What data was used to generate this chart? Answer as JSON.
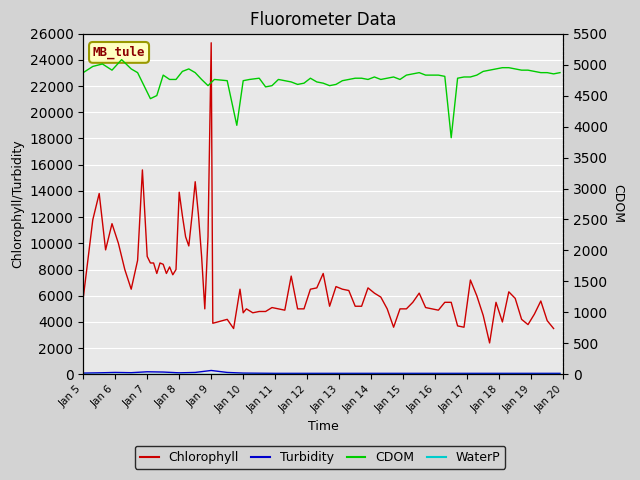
{
  "title": "Fluorometer Data",
  "xlabel": "Time",
  "ylabel_left": "Chlorophyll/Turbidity",
  "ylabel_right": "CDOM",
  "annotation": "MB_tule",
  "ylim_left": [
    0,
    26000
  ],
  "ylim_right": [
    0,
    5500
  ],
  "background_color": "#d3d3d3",
  "plot_bg_color": "#e8e8e8",
  "legend_labels": [
    "Chlorophyll",
    "Turbidity",
    "CDOM",
    "WaterP"
  ],
  "legend_colors": [
    "#cc0000",
    "#0000cc",
    "#00cc00",
    "#00cccc"
  ],
  "chlorophyll": {
    "x": [
      5.0,
      5.3,
      5.5,
      5.7,
      5.9,
      6.1,
      6.3,
      6.5,
      6.7,
      6.85,
      7.0,
      7.1,
      7.2,
      7.3,
      7.4,
      7.5,
      7.6,
      7.7,
      7.8,
      7.9,
      8.0,
      8.1,
      8.2,
      8.3,
      8.4,
      8.5,
      8.6,
      8.7,
      8.8,
      8.9,
      9.0,
      9.05,
      9.5,
      9.7,
      9.9,
      10.0,
      10.1,
      10.3,
      10.5,
      10.7,
      10.9,
      11.1,
      11.3,
      11.5,
      11.7,
      11.9,
      12.1,
      12.3,
      12.5,
      12.7,
      12.9,
      13.1,
      13.3,
      13.5,
      13.7,
      13.9,
      14.1,
      14.3,
      14.5,
      14.7,
      14.9,
      15.1,
      15.3,
      15.5,
      15.7,
      15.9,
      16.1,
      16.3,
      16.5,
      16.7,
      16.9,
      17.1,
      17.3,
      17.5,
      17.7,
      17.9,
      18.1,
      18.3,
      18.5,
      18.7,
      18.9,
      19.1,
      19.3,
      19.5,
      19.7
    ],
    "y": [
      5800,
      11800,
      13800,
      9500,
      11500,
      10000,
      8000,
      6500,
      8700,
      15600,
      9000,
      8500,
      8500,
      7700,
      8500,
      8400,
      7700,
      8200,
      7600,
      8000,
      13900,
      12100,
      10500,
      9800,
      12100,
      14700,
      12200,
      9000,
      5000,
      10500,
      25300,
      3900,
      4200,
      3500,
      6500,
      4700,
      5000,
      4700,
      4800,
      4800,
      5100,
      5000,
      4900,
      7500,
      5000,
      5000,
      6500,
      6600,
      7700,
      5200,
      6700,
      6500,
      6400,
      5200,
      5200,
      6600,
      6200,
      5900,
      5000,
      3600,
      5000,
      5000,
      5500,
      6200,
      5100,
      5000,
      4900,
      5500,
      5500,
      3700,
      3600,
      7200,
      6000,
      4500,
      2400,
      5500,
      4000,
      6300,
      5800,
      4200,
      3800,
      4600,
      5600,
      4100,
      3500
    ]
  },
  "turbidity": {
    "x": [
      5.0,
      5.5,
      6.0,
      6.5,
      7.0,
      7.5,
      8.0,
      8.5,
      9.0,
      9.5,
      10.0,
      11.0,
      12.0,
      13.0,
      14.0,
      15.0,
      16.0,
      17.0,
      18.0,
      19.0,
      19.9
    ],
    "y": [
      100,
      120,
      150,
      130,
      200,
      180,
      120,
      150,
      300,
      150,
      100,
      80,
      80,
      80,
      80,
      80,
      80,
      80,
      80,
      80,
      80
    ]
  },
  "cdom": {
    "x": [
      5.0,
      5.3,
      5.6,
      5.9,
      6.2,
      6.5,
      6.7,
      6.9,
      7.1,
      7.3,
      7.5,
      7.7,
      7.9,
      8.1,
      8.3,
      8.5,
      8.7,
      8.9,
      9.1,
      9.5,
      9.8,
      10.0,
      10.2,
      10.5,
      10.7,
      10.9,
      11.1,
      11.3,
      11.5,
      11.7,
      11.9,
      12.1,
      12.3,
      12.5,
      12.7,
      12.9,
      13.1,
      13.3,
      13.5,
      13.7,
      13.9,
      14.1,
      14.3,
      14.5,
      14.7,
      14.9,
      15.1,
      15.3,
      15.5,
      15.7,
      15.9,
      16.1,
      16.3,
      16.5,
      16.7,
      16.9,
      17.1,
      17.3,
      17.5,
      17.7,
      17.9,
      18.1,
      18.3,
      18.5,
      18.7,
      18.9,
      19.1,
      19.3,
      19.5,
      19.7,
      19.9
    ],
    "y": [
      4870,
      4970,
      5010,
      4910,
      5080,
      4930,
      4870,
      4660,
      4450,
      4500,
      4830,
      4760,
      4760,
      4890,
      4930,
      4870,
      4760,
      4660,
      4760,
      4740,
      4020,
      4740,
      4760,
      4780,
      4640,
      4660,
      4760,
      4740,
      4720,
      4680,
      4700,
      4780,
      4720,
      4700,
      4660,
      4680,
      4740,
      4760,
      4780,
      4780,
      4760,
      4800,
      4760,
      4780,
      4800,
      4760,
      4830,
      4850,
      4870,
      4830,
      4830,
      4830,
      4810,
      3820,
      4780,
      4800,
      4800,
      4830,
      4890,
      4910,
      4930,
      4950,
      4950,
      4930,
      4910,
      4910,
      4890,
      4870,
      4870,
      4850,
      4870
    ]
  },
  "waterp": {
    "x": [
      5.0,
      10.0,
      15.0,
      19.9
    ],
    "y": [
      10,
      10,
      10,
      10
    ]
  },
  "xticks": [
    5,
    6,
    7,
    8,
    9,
    10,
    11,
    12,
    13,
    14,
    15,
    16,
    17,
    18,
    19,
    20
  ],
  "xticklabels": [
    "Jan 5",
    "Jan 6",
    "Jan 7",
    "Jan 8",
    "Jan 9",
    "Jan 10",
    "Jan 11",
    "Jan 12",
    "Jan 13",
    "Jan 14",
    "Jan 15",
    "Jan 16",
    "Jan 17",
    "Jan 18",
    "Jan 19",
    "Jan 20"
  ],
  "yticks_left": [
    0,
    2000,
    4000,
    6000,
    8000,
    10000,
    12000,
    14000,
    16000,
    18000,
    20000,
    22000,
    24000,
    26000
  ],
  "yticks_right": [
    0,
    500,
    1000,
    1500,
    2000,
    2500,
    3000,
    3500,
    4000,
    4500,
    5000,
    5500
  ]
}
